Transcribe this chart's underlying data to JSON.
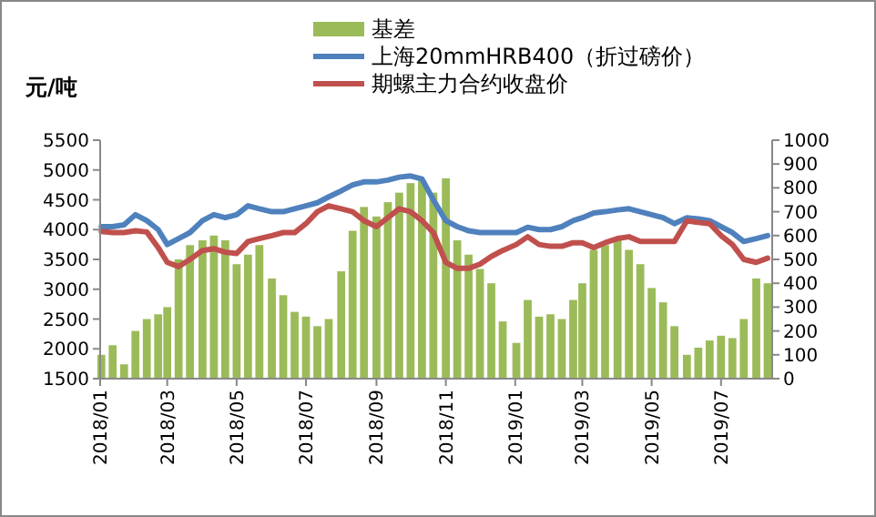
{
  "chart_data": {
    "type": "bar",
    "ylabel": "元/吨",
    "legend": "top",
    "x": [
      "2018-01-02",
      "2018-01-12",
      "2018-01-22",
      "2018-02-01",
      "2018-02-11",
      "2018-02-21",
      "2018-03-01",
      "2018-03-11",
      "2018-03-21",
      "2018-04-01",
      "2018-04-11",
      "2018-04-21",
      "2018-05-01",
      "2018-05-11",
      "2018-05-21",
      "2018-06-01",
      "2018-06-11",
      "2018-06-21",
      "2018-07-01",
      "2018-07-11",
      "2018-07-21",
      "2018-08-01",
      "2018-08-11",
      "2018-08-21",
      "2018-09-01",
      "2018-09-11",
      "2018-09-21",
      "2018-10-01",
      "2018-10-11",
      "2018-10-21",
      "2018-11-01",
      "2018-11-11",
      "2018-11-21",
      "2018-12-01",
      "2018-12-11",
      "2018-12-21",
      "2019-01-02",
      "2019-01-12",
      "2019-01-22",
      "2019-02-01",
      "2019-02-11",
      "2019-02-21",
      "2019-03-01",
      "2019-03-11",
      "2019-03-21",
      "2019-04-01",
      "2019-04-11",
      "2019-04-21",
      "2019-05-01",
      "2019-05-11",
      "2019-05-21",
      "2019-06-01",
      "2019-06-11",
      "2019-06-21",
      "2019-07-01",
      "2019-07-11",
      "2019-07-21",
      "2019-08-01",
      "2019-08-11"
    ],
    "series": [
      {
        "name": "基差",
        "axis": "y2",
        "color": "#9bbb59",
        "values": [
          100,
          140,
          60,
          200,
          250,
          270,
          300,
          500,
          560,
          580,
          600,
          580,
          480,
          520,
          560,
          420,
          350,
          280,
          260,
          220,
          250,
          450,
          620,
          720,
          680,
          740,
          780,
          820,
          830,
          780,
          840,
          580,
          520,
          460,
          400,
          240,
          150,
          330,
          260,
          270,
          250,
          330,
          400,
          540,
          560,
          580,
          540,
          480,
          380,
          320,
          220,
          100,
          130,
          160,
          180,
          170,
          250,
          420,
          400
        ]
      },
      {
        "name": "上海20mmHRB400（折过磅价）",
        "type": "line",
        "color": "#4f81bd",
        "values": [
          4050,
          4050,
          4080,
          4250,
          4150,
          4000,
          3750,
          3850,
          3950,
          4150,
          4250,
          4200,
          4250,
          4400,
          4350,
          4300,
          4300,
          4350,
          4400,
          4450,
          4550,
          4650,
          4750,
          4800,
          4800,
          4830,
          4880,
          4900,
          4850,
          4500,
          4150,
          4050,
          3980,
          3950,
          3950,
          3950,
          3950,
          4040,
          4000,
          4000,
          4050,
          4150,
          4200,
          4280,
          4300,
          4330,
          4350,
          4300,
          4250,
          4200,
          4100,
          4200,
          4180,
          4150,
          4050,
          3950,
          3800,
          3850,
          3900
        ]
      },
      {
        "name": "期螺主力合约收盘价",
        "type": "line",
        "color": "#c0504d",
        "values": [
          3970,
          3950,
          3950,
          3980,
          3960,
          3700,
          3450,
          3380,
          3500,
          3650,
          3680,
          3620,
          3600,
          3800,
          3850,
          3900,
          3950,
          3950,
          4100,
          4300,
          4400,
          4350,
          4300,
          4150,
          4050,
          4200,
          4350,
          4300,
          4150,
          3950,
          3450,
          3350,
          3350,
          3420,
          3550,
          3650,
          3750,
          3880,
          3750,
          3720,
          3720,
          3780,
          3780,
          3700,
          3780,
          3850,
          3880,
          3800,
          3800,
          3800,
          3800,
          4150,
          4120,
          4100,
          3900,
          3750,
          3500,
          3450,
          3520
        ]
      }
    ],
    "xlim": [
      "2018-01-01",
      "2019-08-15"
    ],
    "xticks": [
      {
        "value": "2018-01-01",
        "label": "2018/01"
      },
      {
        "value": "2018-03-01",
        "label": "2018/03"
      },
      {
        "value": "2018-05-01",
        "label": "2018/05"
      },
      {
        "value": "2018-07-01",
        "label": "2018/07"
      },
      {
        "value": "2018-09-01",
        "label": "2018/09"
      },
      {
        "value": "2018-11-01",
        "label": "2018/11"
      },
      {
        "value": "2019-01-01",
        "label": "2019/01"
      },
      {
        "value": "2019-03-01",
        "label": "2019/03"
      },
      {
        "value": "2019-05-01",
        "label": "2019/05"
      },
      {
        "value": "2019-07-01",
        "label": "2019/07"
      }
    ],
    "ylim": [
      1500,
      5500
    ],
    "yticks": [
      1500,
      2000,
      2500,
      3000,
      3500,
      4000,
      4500,
      5000,
      5500
    ],
    "y2lim": [
      0,
      1000
    ],
    "y2ticks": [
      0,
      100,
      200,
      300,
      400,
      500,
      600,
      700,
      800,
      900,
      1000
    ]
  }
}
